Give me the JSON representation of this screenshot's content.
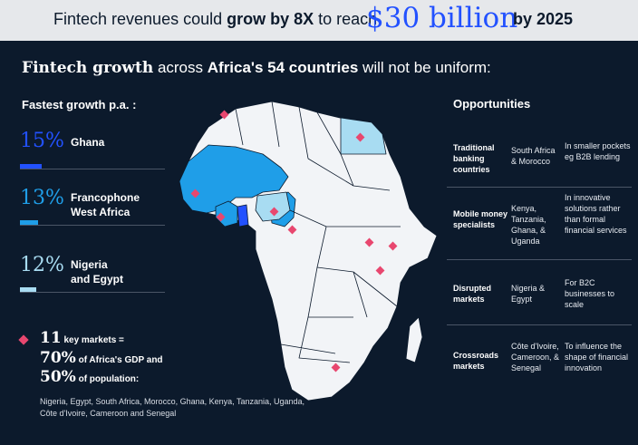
{
  "banner": {
    "text_a": "Fintech revenues could ",
    "text_b": "grow by 8X",
    "text_c": " to reach",
    "big_value": "$30 billion",
    "tail": "by 2025"
  },
  "headline": {
    "part_a": "Fintech growth",
    "part_b": " across ",
    "part_c": "Africa's 54 countries",
    "part_d": " will not be uniform:"
  },
  "left": {
    "title": "Fastest growth p.a. :",
    "stats": [
      {
        "value": "15%",
        "label_1": "Ghana",
        "label_2": "",
        "color": "#2251ff"
      },
      {
        "value": "13%",
        "label_1": "Francophone",
        "label_2": "West Africa",
        "color": "#1f9ee8"
      },
      {
        "value": "12%",
        "label_1": "Nigeria",
        "label_2": "and Egypt",
        "color": "#a8dcf2"
      }
    ]
  },
  "key_markets": {
    "count": "11",
    "count_label": " key markets =",
    "gdp_value": "70%",
    "gdp_label": " of Africa's GDP and",
    "pop_value": "50%",
    "pop_label": " of population:",
    "countries": "Nigeria, Egypt, South Africa, Morocco, Ghana, Kenya, Tanzania, Uganda, Côte d'Ivoire, Cameroon and Senegal",
    "marker_color": "#e8476f"
  },
  "opportunities": {
    "title": "Opportunities",
    "rows": [
      {
        "category": "Traditional banking countries",
        "countries": "South Africa & Morocco",
        "description": "In smaller pockets eg B2B lending"
      },
      {
        "category": "Mobile money specialists",
        "countries": "Kenya, Tanzania, Ghana, & Uganda",
        "description": "In innovative solutions rather than formal financial services"
      },
      {
        "category": "Disrupted markets",
        "countries": "Nigeria & Egypt",
        "description": "For B2C businesses to scale"
      },
      {
        "category": "Crossroads markets",
        "countries": "Côte d'Ivoire, Cameroon, & Senegal",
        "description": "To influence the shape of financial innovation"
      }
    ]
  }
}
